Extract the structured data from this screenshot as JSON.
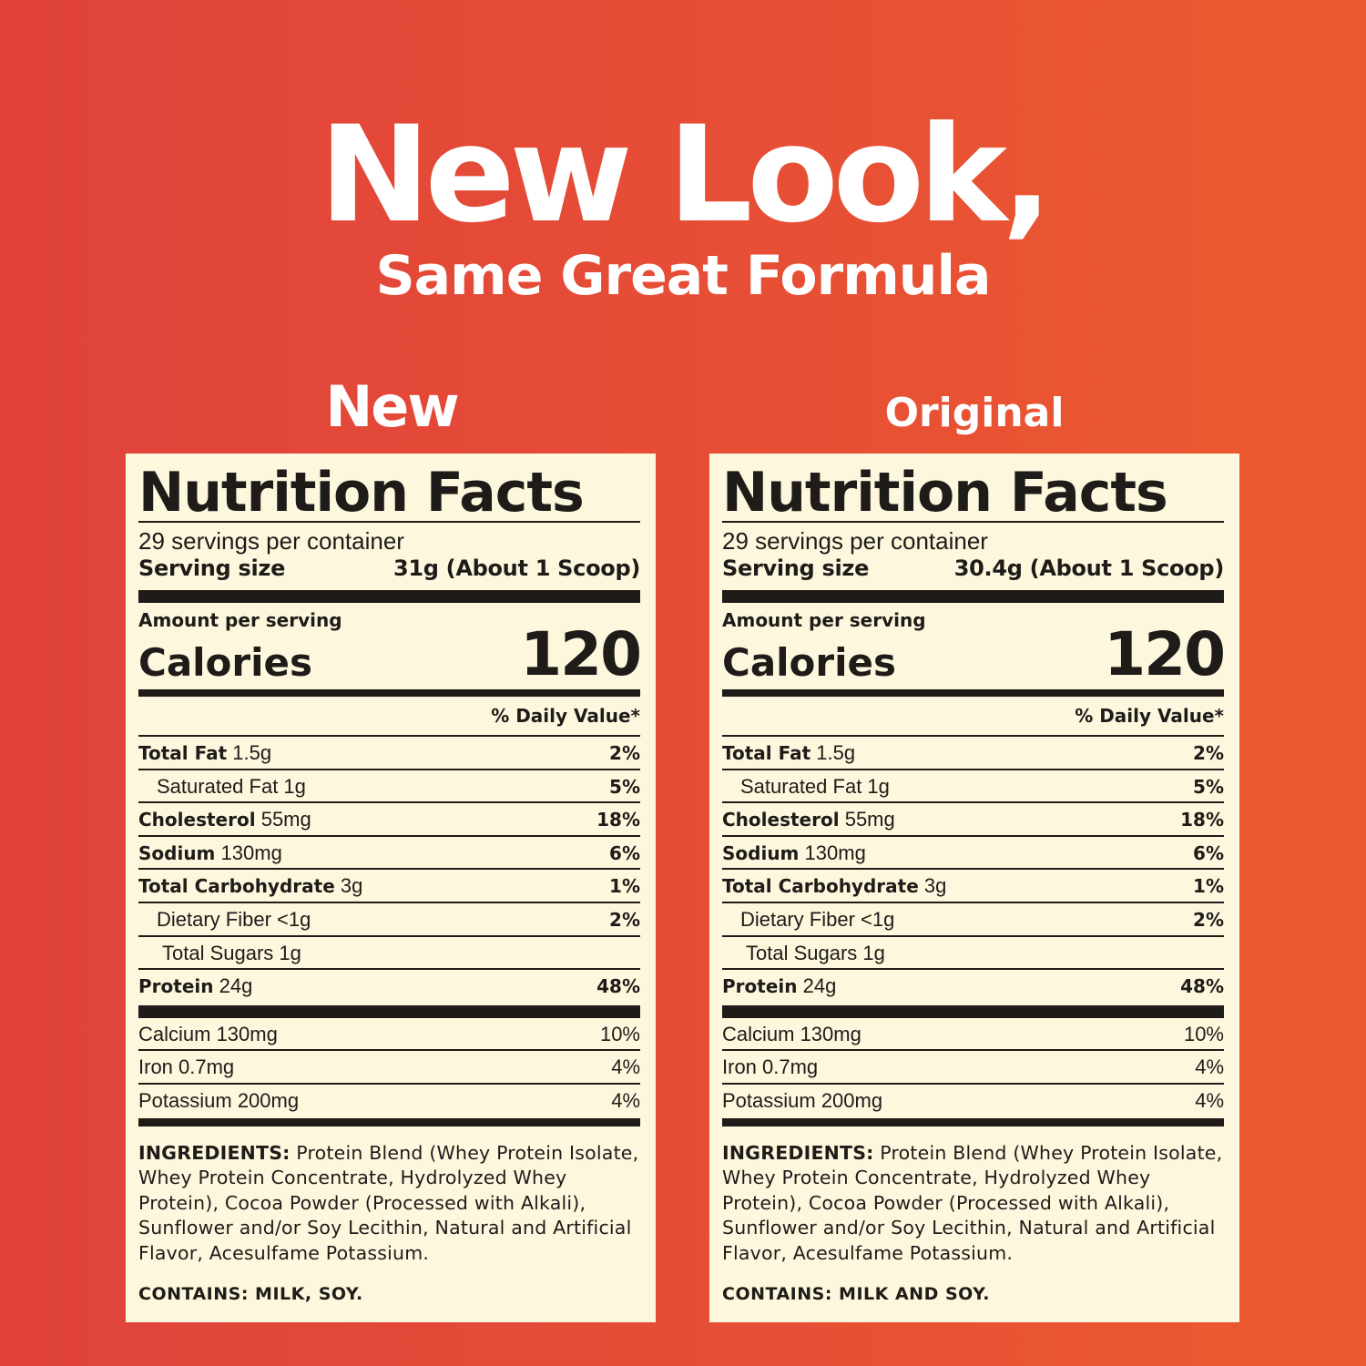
{
  "headline": "New Look,",
  "subheadline": "Same Great Formula",
  "colors": {
    "background_left": "#e0423b",
    "background_right": "#ec5a2f",
    "label_background": "#fdf7dd",
    "text": "#1e1b19"
  },
  "panels": [
    {
      "heading": "New",
      "title": "Nutrition Facts",
      "servings": "29 servings per container",
      "serving_size_label": "Serving size",
      "serving_size_value": "31g (About 1 Scoop)",
      "amount_per_serving": "Amount per serving",
      "calories_label": "Calories",
      "calories_value": "120",
      "daily_value_header": "% Daily Value*",
      "nutrients": [
        {
          "name": "Total Fat",
          "amount": "1.5g",
          "dv": "2%",
          "style": "main"
        },
        {
          "name": "Saturated Fat 1g",
          "amount": "",
          "dv": "5%",
          "style": "sub"
        },
        {
          "name": "Cholesterol",
          "amount": "55mg",
          "dv": "18%",
          "style": "main"
        },
        {
          "name": "Sodium",
          "amount": "130mg",
          "dv": "6%",
          "style": "main"
        },
        {
          "name": "Total Carbohydrate",
          "amount": "3g",
          "dv": "1%",
          "style": "main"
        },
        {
          "name": "Dietary Fiber <1g",
          "amount": "",
          "dv": "2%",
          "style": "sub"
        },
        {
          "name": "Total Sugars 1g",
          "amount": "",
          "dv": "",
          "style": "sub2"
        },
        {
          "name": "Protein",
          "amount": "24g",
          "dv": "48%",
          "style": "main"
        }
      ],
      "minerals": [
        {
          "name": "Calcium 130mg",
          "dv": "10%"
        },
        {
          "name": "Iron 0.7mg",
          "dv": "4%"
        },
        {
          "name": "Potassium 200mg",
          "dv": "4%"
        }
      ],
      "ingredients_label": "INGREDIENTS:",
      "ingredients": "Protein Blend (Whey Protein Isolate, Whey Protein Concentrate, Hydrolyzed Whey Protein), Cocoa Powder (Processed with Alkali), Sunflower and/or Soy Lecithin, Natural and Artificial Flavor, Acesulfame Potassium.",
      "contains": "CONTAINS: MILK, SOY."
    },
    {
      "heading": "Original",
      "title": "Nutrition Facts",
      "servings": "29 servings per container",
      "serving_size_label": "Serving size",
      "serving_size_value": "30.4g (About 1 Scoop)",
      "amount_per_serving": "Amount per serving",
      "calories_label": "Calories",
      "calories_value": "120",
      "daily_value_header": "% Daily Value*",
      "nutrients": [
        {
          "name": "Total Fat",
          "amount": "1.5g",
          "dv": "2%",
          "style": "main"
        },
        {
          "name": "Saturated Fat 1g",
          "amount": "",
          "dv": "5%",
          "style": "sub"
        },
        {
          "name": "Cholesterol",
          "amount": "55mg",
          "dv": "18%",
          "style": "main"
        },
        {
          "name": "Sodium",
          "amount": "130mg",
          "dv": "6%",
          "style": "main"
        },
        {
          "name": "Total Carbohydrate",
          "amount": "3g",
          "dv": "1%",
          "style": "main"
        },
        {
          "name": "Dietary Fiber <1g",
          "amount": "",
          "dv": "2%",
          "style": "sub"
        },
        {
          "name": "Total Sugars 1g",
          "amount": "",
          "dv": "",
          "style": "sub2"
        },
        {
          "name": "Protein",
          "amount": "24g",
          "dv": "48%",
          "style": "main"
        }
      ],
      "minerals": [
        {
          "name": "Calcium 130mg",
          "dv": "10%"
        },
        {
          "name": "Iron 0.7mg",
          "dv": "4%"
        },
        {
          "name": "Potassium 200mg",
          "dv": "4%"
        }
      ],
      "ingredients_label": "INGREDIENTS:",
      "ingredients": "Protein Blend (Whey Protein Isolate, Whey Protein Concentrate, Hydrolyzed Whey Protein), Cocoa Powder (Processed with Alkali), Sunflower and/or Soy Lecithin, Natural and Artificial Flavor, Acesulfame Potassium.",
      "contains": "CONTAINS: MILK AND SOY."
    }
  ]
}
